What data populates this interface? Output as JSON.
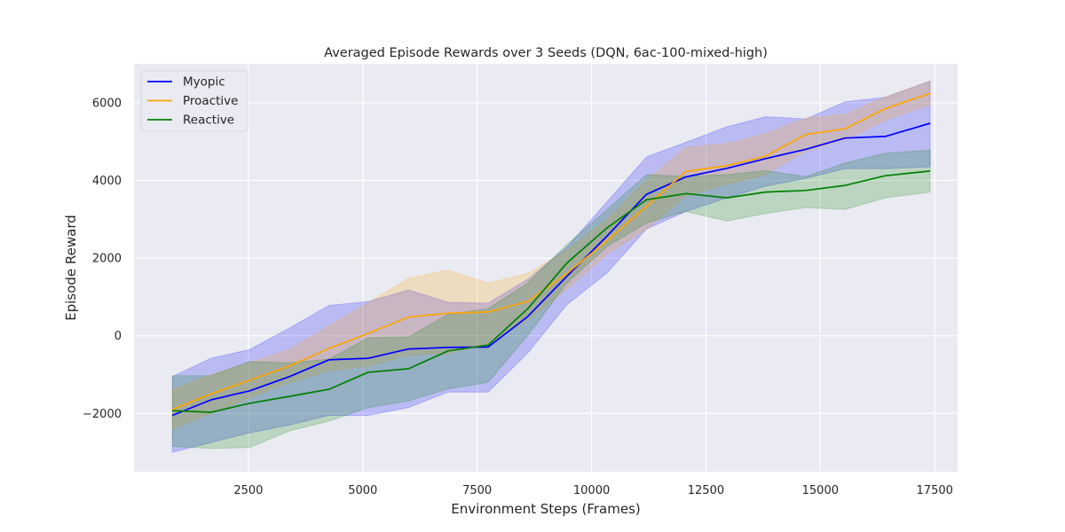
{
  "chart_data": {
    "type": "line",
    "title": "Averaged Episode Rewards over 3 Seeds (DQN, 6ac-100-mixed-high)",
    "xlabel": "Environment Steps (Frames)",
    "ylabel": "Episode Reward",
    "xlim": [
      0,
      18000
    ],
    "ylim": [
      -3500,
      7000
    ],
    "xticks": [
      2500,
      5000,
      7500,
      10000,
      12500,
      15000,
      17500
    ],
    "yticks": [
      -2000,
      0,
      2000,
      4000,
      6000
    ],
    "grid": true,
    "legend_position": "top-left",
    "x": [
      840,
      1680,
      2520,
      3400,
      4260,
      5120,
      6000,
      6860,
      7740,
      8600,
      9460,
      10340,
      11200,
      12060,
      12960,
      13800,
      14680,
      15540,
      16420,
      17400
    ],
    "series": [
      {
        "name": "Myopic",
        "color": "#0000ff",
        "values": [
          -2050,
          -1650,
          -1420,
          -1050,
          -620,
          -580,
          -340,
          -300,
          -290,
          490,
          1530,
          2570,
          3640,
          4090,
          4310,
          4560,
          4800,
          5090,
          5130,
          5470
        ],
        "lower": [
          -3000,
          -2750,
          -2500,
          -2300,
          -2050,
          -2050,
          -1850,
          -1450,
          -1450,
          -450,
          800,
          1620,
          2750,
          3200,
          3550,
          3850,
          4050,
          4300,
          4300,
          4350
        ],
        "upper": [
          -1050,
          -580,
          -360,
          200,
          780,
          880,
          1180,
          860,
          840,
          1450,
          2280,
          3450,
          4600,
          4980,
          5380,
          5640,
          5580,
          6020,
          6140,
          6560
        ]
      },
      {
        "name": "Proactive",
        "color": "#ffa500",
        "values": [
          -1900,
          -1500,
          -1150,
          -780,
          -330,
          60,
          480,
          580,
          610,
          880,
          1600,
          2450,
          3330,
          4230,
          4380,
          4620,
          5180,
          5330,
          5850,
          6240
        ],
        "lower": [
          -2400,
          -2000,
          -1600,
          -1200,
          -900,
          -780,
          -500,
          -450,
          -200,
          400,
          1200,
          2100,
          2750,
          3600,
          3900,
          4150,
          4750,
          5050,
          5550,
          5950
        ],
        "upper": [
          -1400,
          -1000,
          -700,
          -350,
          250,
          850,
          1480,
          1690,
          1360,
          1600,
          2200,
          3000,
          4000,
          4850,
          4950,
          5200,
          5600,
          5700,
          6150,
          6550
        ]
      },
      {
        "name": "Reactive",
        "color": "#008000",
        "values": [
          -1930,
          -1970,
          -1740,
          -1560,
          -1380,
          -940,
          -850,
          -390,
          -240,
          690,
          1870,
          2780,
          3500,
          3660,
          3550,
          3700,
          3740,
          3870,
          4120,
          4240
        ],
        "lower": [
          -2850,
          -2900,
          -2880,
          -2450,
          -2200,
          -1850,
          -1680,
          -1370,
          -1200,
          0,
          1350,
          2300,
          2900,
          3200,
          2950,
          3150,
          3300,
          3250,
          3550,
          3700
        ],
        "upper": [
          -1030,
          -1030,
          -660,
          -700,
          -600,
          -50,
          -30,
          550,
          700,
          1350,
          2350,
          3250,
          4150,
          4100,
          4150,
          4250,
          4100,
          4450,
          4700,
          4780
        ]
      }
    ]
  }
}
